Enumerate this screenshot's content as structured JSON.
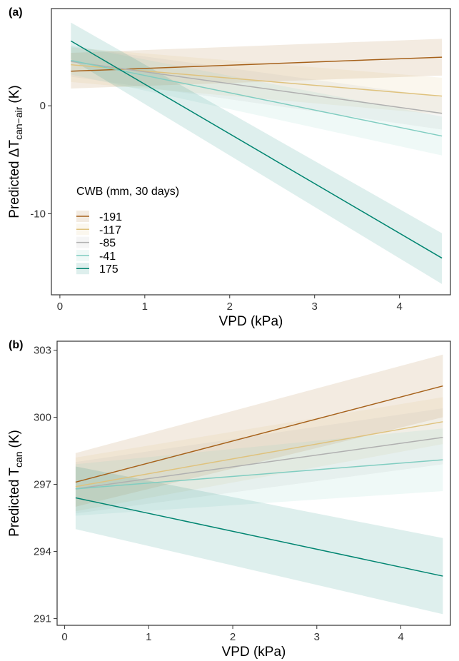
{
  "chart_data": [
    {
      "type": "line",
      "panel_label": "(a)",
      "xlabel": "VPD (kPa)",
      "ylabel": "Predicted ΔT",
      "ylabel_sub": "can−air",
      "ylabel_unit": "(K)",
      "x": [
        0.13,
        4.5
      ],
      "xlim": [
        -0.1,
        4.6
      ],
      "ylim": [
        -17.5,
        9
      ],
      "xticks": [
        0,
        1,
        2,
        3,
        4
      ],
      "yticks": [
        -10,
        0
      ],
      "legend": "lower left",
      "legend_title": "CWB (mm, 30 days)",
      "series": [
        {
          "name": "-191",
          "color": "#a6611a",
          "values": [
            3.2,
            4.5
          ],
          "lower": [
            1.6,
            2.8
          ],
          "upper": [
            4.9,
            6.2
          ]
        },
        {
          "name": "-117",
          "color": "#dfc27d",
          "values": [
            3.8,
            0.9
          ],
          "lower": [
            2.2,
            -0.8
          ],
          "upper": [
            5.4,
            2.6
          ]
        },
        {
          "name": "-85",
          "color": "#b0b0b0",
          "values": [
            4.1,
            -0.7
          ],
          "lower": [
            2.7,
            -2.2
          ],
          "upper": [
            5.5,
            0.8
          ]
        },
        {
          "name": "-41",
          "color": "#80cdc1",
          "values": [
            4.2,
            -2.8
          ],
          "lower": [
            2.9,
            -4.6
          ],
          "upper": [
            5.6,
            -1.0
          ]
        },
        {
          "name": "175",
          "color": "#018571",
          "values": [
            6.0,
            -14.1
          ],
          "lower": [
            4.3,
            -16.5
          ],
          "upper": [
            7.7,
            -11.8
          ]
        }
      ]
    },
    {
      "type": "line",
      "panel_label": "(b)",
      "xlabel": "VPD (kPa)",
      "ylabel": "Predicted T",
      "ylabel_sub": "can",
      "ylabel_unit": "(K)",
      "x": [
        0.13,
        4.5
      ],
      "xlim": [
        -0.09,
        4.59
      ],
      "ylim": [
        290.7,
        303.4
      ],
      "xticks": [
        0,
        1,
        2,
        3,
        4
      ],
      "yticks": [
        291,
        294,
        297,
        300,
        303
      ],
      "series": [
        {
          "color": "#a6611a",
          "values": [
            297.1,
            301.4
          ],
          "lower": [
            296.0,
            300.0
          ],
          "upper": [
            298.4,
            302.8
          ]
        },
        {
          "color": "#dfc27d",
          "values": [
            296.9,
            299.8
          ],
          "lower": [
            295.8,
            298.8
          ],
          "upper": [
            298.2,
            300.9
          ]
        },
        {
          "color": "#b0b0b0",
          "values": [
            296.8,
            299.1
          ],
          "lower": [
            295.7,
            297.9
          ],
          "upper": [
            298.0,
            300.4
          ]
        },
        {
          "color": "#80cdc1",
          "values": [
            296.8,
            298.1
          ],
          "lower": [
            295.6,
            296.7
          ],
          "upper": [
            297.9,
            299.5
          ]
        },
        {
          "color": "#018571",
          "values": [
            296.4,
            292.9
          ],
          "lower": [
            295.0,
            291.2
          ],
          "upper": [
            297.8,
            294.6
          ]
        }
      ]
    }
  ]
}
